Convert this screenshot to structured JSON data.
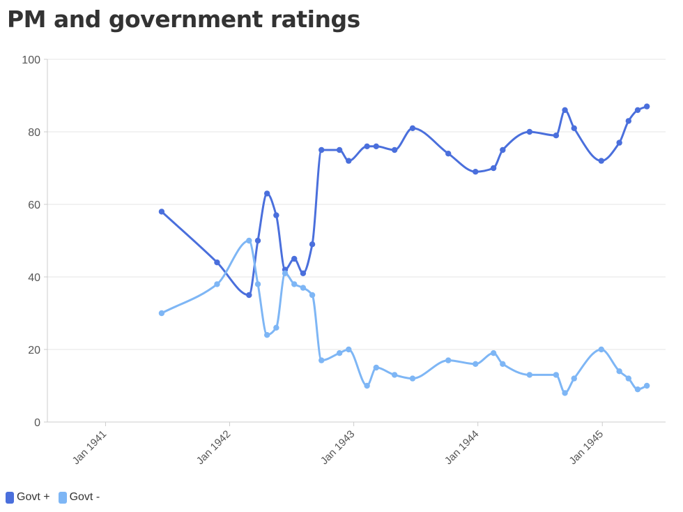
{
  "chart_data": {
    "type": "line",
    "title": "PM and government ratings",
    "xlabel": "",
    "ylabel": "",
    "ylim": [
      0,
      100
    ],
    "yticks": [
      0,
      20,
      40,
      60,
      80,
      100
    ],
    "xlim": [
      "1940-07-14",
      "1945-07-06"
    ],
    "xticks": [
      {
        "date": "1941-01-01",
        "label": "Jan 1941"
      },
      {
        "date": "1942-01-01",
        "label": "Jan 1942"
      },
      {
        "date": "1943-01-01",
        "label": "Jan 1943"
      },
      {
        "date": "1944-01-01",
        "label": "Jan 1944"
      },
      {
        "date": "1945-01-01",
        "label": "Jan 1945"
      }
    ],
    "grid": true,
    "legend_position": "bottom-left",
    "series": [
      {
        "name": "Govt +",
        "color": "#4a6fdc",
        "points": [
          [
            "1941-06-15",
            58
          ],
          [
            "1941-11-25",
            44
          ],
          [
            "1942-02-27",
            35
          ],
          [
            "1942-03-25",
            50
          ],
          [
            "1942-04-21",
            63
          ],
          [
            "1942-05-18",
            57
          ],
          [
            "1942-06-13",
            42
          ],
          [
            "1942-07-10",
            45
          ],
          [
            "1942-08-05",
            41
          ],
          [
            "1942-09-01",
            49
          ],
          [
            "1942-09-28",
            75
          ],
          [
            "1942-11-20",
            75
          ],
          [
            "1942-12-17",
            72
          ],
          [
            "1943-02-09",
            76
          ],
          [
            "1943-03-08",
            76
          ],
          [
            "1943-05-01",
            75
          ],
          [
            "1943-06-23",
            81
          ],
          [
            "1943-10-06",
            74
          ],
          [
            "1943-12-25",
            69
          ],
          [
            "1944-02-16",
            70
          ],
          [
            "1944-03-14",
            75
          ],
          [
            "1944-06-01",
            80
          ],
          [
            "1944-08-18",
            79
          ],
          [
            "1944-09-13",
            86
          ],
          [
            "1944-10-10",
            81
          ],
          [
            "1944-12-29",
            72
          ],
          [
            "1945-02-20",
            77
          ],
          [
            "1945-03-19",
            83
          ],
          [
            "1945-04-15",
            86
          ],
          [
            "1945-05-12",
            87
          ]
        ]
      },
      {
        "name": "Govt -",
        "color": "#7eb6f5",
        "points": [
          [
            "1941-06-15",
            30
          ],
          [
            "1941-11-25",
            38
          ],
          [
            "1942-02-27",
            50
          ],
          [
            "1942-03-25",
            38
          ],
          [
            "1942-04-21",
            24
          ],
          [
            "1942-05-18",
            26
          ],
          [
            "1942-06-13",
            41
          ],
          [
            "1942-07-10",
            38
          ],
          [
            "1942-08-05",
            37
          ],
          [
            "1942-09-01",
            35
          ],
          [
            "1942-09-28",
            17
          ],
          [
            "1942-11-20",
            19
          ],
          [
            "1942-12-17",
            20
          ],
          [
            "1943-02-09",
            10
          ],
          [
            "1943-03-08",
            15
          ],
          [
            "1943-05-01",
            13
          ],
          [
            "1943-06-23",
            12
          ],
          [
            "1943-10-06",
            17
          ],
          [
            "1943-12-25",
            16
          ],
          [
            "1944-02-16",
            19
          ],
          [
            "1944-03-14",
            16
          ],
          [
            "1944-06-01",
            13
          ],
          [
            "1944-08-18",
            13
          ],
          [
            "1944-09-13",
            8
          ],
          [
            "1944-10-10",
            12
          ],
          [
            "1944-12-29",
            20
          ],
          [
            "1945-02-20",
            14
          ],
          [
            "1945-03-19",
            12
          ],
          [
            "1945-04-15",
            9
          ],
          [
            "1945-05-12",
            10
          ]
        ]
      }
    ]
  }
}
